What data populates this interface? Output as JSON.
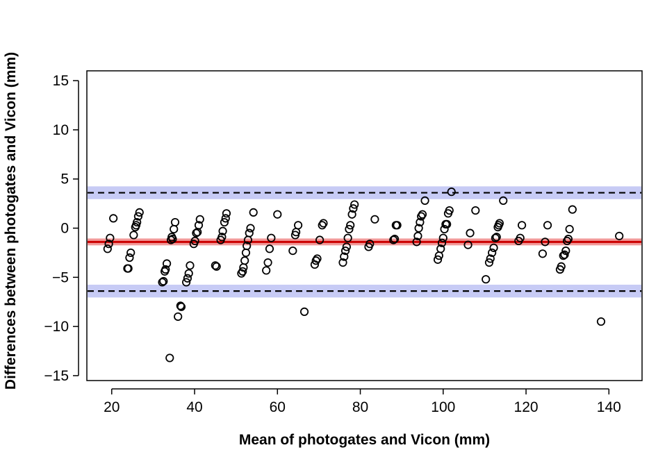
{
  "chart_data": {
    "type": "scatter",
    "title": "",
    "xlabel": "Mean of photogates and Vicon (mm)",
    "ylabel": "Differences between photogates and Vicon (mm)",
    "xlim": [
      14,
      148
    ],
    "ylim": [
      -15.5,
      16
    ],
    "xticks": [
      20,
      40,
      60,
      80,
      100,
      120,
      140
    ],
    "yticks": [
      -15,
      -10,
      -5,
      0,
      5,
      10,
      15
    ],
    "ytick_labels": [
      "−15",
      "−10",
      "−5",
      "0",
      "5",
      "10",
      "15"
    ],
    "grid": false,
    "legend": "none",
    "reference_lines": {
      "bias": {
        "value": -1.4,
        "ci": [
          -1.75,
          -1.05
        ],
        "line_color": "#cc0000",
        "band_color": "#f29a9a"
      },
      "upper_loa": {
        "value": 3.6,
        "ci": [
          2.95,
          4.25
        ],
        "line_color": "#000000",
        "band_color": "#c7cbf5"
      },
      "lower_loa": {
        "value": -6.4,
        "ci": [
          -7.05,
          -5.75
        ],
        "line_color": "#000000",
        "band_color": "#c7cbf5"
      }
    },
    "series": [
      {
        "marker": "open-circle",
        "color": "#000000",
        "points": [
          [
            19.0,
            -2.1
          ],
          [
            19.3,
            -1.6
          ],
          [
            19.6,
            -1.0
          ],
          [
            20.4,
            1.0
          ],
          [
            23.8,
            -4.1
          ],
          [
            24.0,
            -4.1
          ],
          [
            24.3,
            -3.0
          ],
          [
            24.6,
            -2.5
          ],
          [
            25.3,
            -0.7
          ],
          [
            25.7,
            0.1
          ],
          [
            25.9,
            0.3
          ],
          [
            26.1,
            0.6
          ],
          [
            26.4,
            1.2
          ],
          [
            26.7,
            1.6
          ],
          [
            32.2,
            -5.5
          ],
          [
            32.5,
            -5.4
          ],
          [
            32.8,
            -4.4
          ],
          [
            33.0,
            -4.2
          ],
          [
            33.3,
            -3.6
          ],
          [
            34.0,
            -13.2
          ],
          [
            34.3,
            -1.2
          ],
          [
            34.5,
            -0.9
          ],
          [
            34.7,
            -1.1
          ],
          [
            35.0,
            -0.1
          ],
          [
            35.3,
            0.6
          ],
          [
            36.0,
            -9.0
          ],
          [
            36.6,
            -7.9
          ],
          [
            36.8,
            -8.0
          ],
          [
            38.0,
            -5.5
          ],
          [
            38.3,
            -5.1
          ],
          [
            38.6,
            -4.6
          ],
          [
            38.9,
            -3.8
          ],
          [
            39.8,
            -1.6
          ],
          [
            40.1,
            -1.3
          ],
          [
            40.4,
            -0.5
          ],
          [
            40.7,
            -0.4
          ],
          [
            41.0,
            0.3
          ],
          [
            41.3,
            0.9
          ],
          [
            45.0,
            -3.8
          ],
          [
            45.3,
            -3.9
          ],
          [
            46.3,
            -1.2
          ],
          [
            46.6,
            -0.9
          ],
          [
            46.8,
            -0.3
          ],
          [
            47.2,
            0.6
          ],
          [
            47.5,
            1.0
          ],
          [
            47.7,
            1.5
          ],
          [
            51.3,
            -4.6
          ],
          [
            51.6,
            -4.4
          ],
          [
            51.8,
            -4.0
          ],
          [
            52.1,
            -3.3
          ],
          [
            52.4,
            -2.5
          ],
          [
            52.6,
            -1.8
          ],
          [
            52.9,
            -1.2
          ],
          [
            53.2,
            -0.5
          ],
          [
            53.5,
            0.0
          ],
          [
            54.2,
            1.6
          ],
          [
            57.3,
            -4.3
          ],
          [
            57.7,
            -3.5
          ],
          [
            58.1,
            -2.1
          ],
          [
            58.5,
            -1.0
          ],
          [
            60.0,
            1.4
          ],
          [
            63.7,
            -2.3
          ],
          [
            64.3,
            -0.7
          ],
          [
            64.5,
            -0.4
          ],
          [
            65.0,
            0.3
          ],
          [
            66.5,
            -8.5
          ],
          [
            69.0,
            -3.7
          ],
          [
            69.3,
            -3.3
          ],
          [
            69.6,
            -3.1
          ],
          [
            70.2,
            -1.2
          ],
          [
            70.8,
            0.3
          ],
          [
            71.1,
            0.5
          ],
          [
            75.8,
            -3.5
          ],
          [
            76.1,
            -2.9
          ],
          [
            76.4,
            -2.3
          ],
          [
            76.7,
            -1.9
          ],
          [
            77.0,
            -1.0
          ],
          [
            77.3,
            -0.1
          ],
          [
            77.6,
            0.3
          ],
          [
            78.0,
            1.4
          ],
          [
            78.3,
            2.0
          ],
          [
            78.6,
            2.4
          ],
          [
            82.0,
            -1.9
          ],
          [
            82.3,
            -1.6
          ],
          [
            83.5,
            0.9
          ],
          [
            88.0,
            -1.2
          ],
          [
            88.3,
            -1.1
          ],
          [
            88.6,
            0.3
          ],
          [
            88.9,
            0.3
          ],
          [
            93.6,
            -1.4
          ],
          [
            93.9,
            -0.8
          ],
          [
            94.1,
            0.0
          ],
          [
            94.4,
            0.6
          ],
          [
            94.7,
            1.2
          ],
          [
            95.0,
            1.4
          ],
          [
            95.6,
            2.8
          ],
          [
            98.7,
            -3.2
          ],
          [
            99.0,
            -2.8
          ],
          [
            99.4,
            -2.1
          ],
          [
            99.7,
            -1.5
          ],
          [
            100.0,
            -1.0
          ],
          [
            100.3,
            -0.1
          ],
          [
            100.6,
            0.4
          ],
          [
            100.9,
            0.4
          ],
          [
            101.2,
            1.5
          ],
          [
            101.5,
            1.8
          ],
          [
            102.0,
            3.7
          ],
          [
            106.0,
            -1.7
          ],
          [
            106.5,
            -0.5
          ],
          [
            107.8,
            1.8
          ],
          [
            110.3,
            -5.2
          ],
          [
            111.1,
            -3.5
          ],
          [
            111.4,
            -3.1
          ],
          [
            111.8,
            -2.5
          ],
          [
            112.2,
            -2.0
          ],
          [
            112.6,
            -1.0
          ],
          [
            112.9,
            -0.9
          ],
          [
            113.2,
            0.1
          ],
          [
            113.4,
            0.3
          ],
          [
            113.6,
            0.5
          ],
          [
            114.5,
            2.8
          ],
          [
            118.2,
            -1.3
          ],
          [
            118.6,
            -1.0
          ],
          [
            119.0,
            0.3
          ],
          [
            124.0,
            -2.6
          ],
          [
            124.6,
            -1.4
          ],
          [
            125.2,
            0.3
          ],
          [
            128.2,
            -4.2
          ],
          [
            128.5,
            -3.9
          ],
          [
            129.0,
            -2.8
          ],
          [
            129.3,
            -2.7
          ],
          [
            129.6,
            -2.3
          ],
          [
            129.9,
            -1.3
          ],
          [
            130.2,
            -1.1
          ],
          [
            130.5,
            -0.1
          ],
          [
            131.2,
            1.9
          ],
          [
            138.1,
            -9.5
          ],
          [
            142.5,
            -0.8
          ]
        ]
      }
    ]
  }
}
